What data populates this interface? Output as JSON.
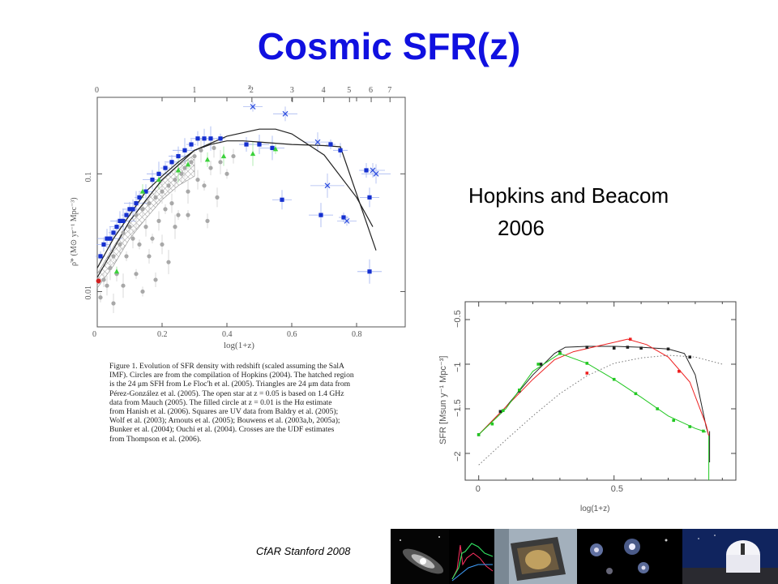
{
  "slide": {
    "title": "Cosmic SFR(z)",
    "credit_line1": "Hopkins and Beacom",
    "credit_line2": "2006",
    "footer": "CfAR Stanford 2008"
  },
  "caption_lines": [
    "Figure 1.     Evolution of SFR density with redshift (scaled assuming the SalA",
    "IMF). Circles are from the compilation of Hopkins (2004). The hatched region",
    "is the 24 μm SFH from Le Floc'h et al. (2005). Triangles are 24 μm data from",
    "Pérez-González et al. (2005). The open star at z = 0.05 is based on 1.4 GHz",
    "data from Mauch (2005). The filled circle at z = 0.01 is the Hα estimate",
    "from Hanish et al. (2006). Squares are UV data from Baldry et al. (2005);",
    "Wolf et al. (2003); Arnouts et al. (2005); Bouwens et al. (2003a,b, 2005a);",
    "Bunker et al. (2004); Ouchi et al. (2004). Crosses are the UDF estimates",
    "from Thompson et al. (2006)."
  ],
  "chart_data": [
    {
      "type": "scatter",
      "xlabel": "log(1+z)",
      "ylabel": "ρ̇* (M⊙ yr⁻¹ Mpc⁻³)",
      "top_axis_label": "z",
      "x_ticks": [
        "0",
        "0.2",
        "0.4",
        "0.6",
        "0.8"
      ],
      "top_ticks": [
        "0",
        "1",
        "2",
        "3",
        "4",
        "5",
        "6",
        "7"
      ],
      "y_ticks": [
        "0.01",
        "0.1"
      ],
      "xlim": [
        0,
        0.95
      ],
      "ylim_log10": [
        -2.3,
        -0.35
      ],
      "colors": {
        "circles": "#a8a8a8",
        "squares": "#1530d0",
        "triangles": "#3cd23c",
        "crosses": "#3050e0",
        "filled_circle": "#d02020"
      },
      "series": [
        {
          "name": "Circles",
          "points": [
            [
              0.01,
              -2.05
            ],
            [
              0.02,
              -1.9
            ],
            [
              0.03,
              -1.95
            ],
            [
              0.04,
              -1.8
            ],
            [
              0.05,
              -1.7
            ],
            [
              0.06,
              -1.85
            ],
            [
              0.07,
              -1.6
            ],
            [
              0.08,
              -1.5
            ],
            [
              0.09,
              -1.7
            ],
            [
              0.1,
              -1.45
            ],
            [
              0.11,
              -1.55
            ],
            [
              0.12,
              -1.35
            ],
            [
              0.13,
              -1.6
            ],
            [
              0.14,
              -1.3
            ],
            [
              0.15,
              -1.45
            ],
            [
              0.16,
              -1.25
            ],
            [
              0.17,
              -1.55
            ],
            [
              0.18,
              -1.2
            ],
            [
              0.19,
              -1.4
            ],
            [
              0.2,
              -1.15
            ],
            [
              0.21,
              -1.3
            ],
            [
              0.22,
              -1.1
            ],
            [
              0.23,
              -1.25
            ],
            [
              0.24,
              -1.05
            ],
            [
              0.25,
              -1.35
            ],
            [
              0.26,
              -1.0
            ],
            [
              0.27,
              -0.95
            ],
            [
              0.28,
              -1.15
            ],
            [
              0.29,
              -0.9
            ],
            [
              0.3,
              -0.85
            ],
            [
              0.31,
              -1.05
            ],
            [
              0.32,
              -0.8
            ],
            [
              0.33,
              -1.1
            ],
            [
              0.35,
              -0.95
            ],
            [
              0.37,
              -1.2
            ],
            [
              0.38,
              -0.9
            ],
            [
              0.4,
              -1.0
            ],
            [
              0.42,
              -0.85
            ],
            [
              0.05,
              -2.1
            ],
            [
              0.08,
              -1.95
            ],
            [
              0.12,
              -1.85
            ],
            [
              0.16,
              -1.7
            ],
            [
              0.2,
              -1.6
            ],
            [
              0.24,
              -1.45
            ],
            [
              0.28,
              -1.35
            ],
            [
              0.34,
              -1.4
            ],
            [
              0.36,
              -0.78
            ],
            [
              0.22,
              -1.75
            ],
            [
              0.14,
              -2.0
            ],
            [
              0.18,
              -1.9
            ]
          ]
        },
        {
          "name": "Squares",
          "points": [
            [
              0.01,
              -1.7
            ],
            [
              0.02,
              -1.6
            ],
            [
              0.03,
              -1.55
            ],
            [
              0.04,
              -1.55
            ],
            [
              0.05,
              -1.5
            ],
            [
              0.06,
              -1.45
            ],
            [
              0.07,
              -1.4
            ],
            [
              0.08,
              -1.4
            ],
            [
              0.09,
              -1.35
            ],
            [
              0.1,
              -1.3
            ],
            [
              0.11,
              -1.3
            ],
            [
              0.12,
              -1.25
            ],
            [
              0.13,
              -1.2
            ],
            [
              0.15,
              -1.15
            ],
            [
              0.17,
              -1.05
            ],
            [
              0.19,
              -1.0
            ],
            [
              0.21,
              -0.95
            ],
            [
              0.23,
              -0.9
            ],
            [
              0.25,
              -0.85
            ],
            [
              0.27,
              -0.8
            ],
            [
              0.29,
              -0.75
            ],
            [
              0.31,
              -0.7
            ],
            [
              0.33,
              -0.7
            ],
            [
              0.35,
              -0.7
            ],
            [
              0.38,
              -0.7
            ],
            [
              0.46,
              -0.75
            ],
            [
              0.5,
              -0.75
            ],
            [
              0.54,
              -0.78
            ],
            [
              0.72,
              -0.75
            ],
            [
              0.75,
              -0.8
            ],
            [
              0.57,
              -1.22
            ],
            [
              0.69,
              -1.35
            ],
            [
              0.76,
              -1.37
            ],
            [
              0.83,
              -0.97
            ],
            [
              0.84,
              -1.2
            ],
            [
              0.84,
              -1.83
            ]
          ]
        },
        {
          "name": "Triangles",
          "points": [
            [
              0.06,
              -1.83
            ],
            [
              0.14,
              -1.15
            ],
            [
              0.19,
              -1.05
            ],
            [
              0.25,
              -0.97
            ],
            [
              0.28,
              -0.92
            ],
            [
              0.34,
              -0.88
            ],
            [
              0.39,
              -0.85
            ],
            [
              0.48,
              -0.83
            ],
            [
              0.55,
              -0.79
            ]
          ]
        },
        {
          "name": "Crosses",
          "points": [
            [
              0.48,
              -0.43
            ],
            [
              0.58,
              -0.49
            ],
            [
              0.68,
              -0.73
            ],
            [
              0.71,
              -1.1
            ],
            [
              0.77,
              -1.4
            ],
            [
              0.85,
              -0.97
            ],
            [
              0.86,
              -1.0
            ]
          ]
        },
        {
          "name": "Filled circle",
          "points": [
            [
              0.004,
              -1.91
            ]
          ]
        }
      ],
      "lines": [
        {
          "name": "model fit",
          "points": [
            [
              0,
              -1.88
            ],
            [
              0.1,
              -1.4
            ],
            [
              0.2,
              -1.05
            ],
            [
              0.3,
              -0.8
            ],
            [
              0.4,
              -0.68
            ],
            [
              0.5,
              -0.62
            ],
            [
              0.55,
              -0.62
            ],
            [
              0.6,
              -0.66
            ],
            [
              0.7,
              -0.84
            ],
            [
              0.8,
              -1.2
            ],
            [
              0.85,
              -1.45
            ]
          ]
        },
        {
          "name": "piecewise fit",
          "points": [
            [
              0,
              -1.8
            ],
            [
              0.05,
              -1.55
            ],
            [
              0.1,
              -1.35
            ],
            [
              0.15,
              -1.15
            ],
            [
              0.2,
              -1.02
            ],
            [
              0.25,
              -0.9
            ],
            [
              0.3,
              -0.8
            ],
            [
              0.35,
              -0.75
            ],
            [
              0.4,
              -0.72
            ],
            [
              0.45,
              -0.72
            ],
            [
              0.5,
              -0.73
            ],
            [
              0.6,
              -0.75
            ],
            [
              0.7,
              -0.76
            ],
            [
              0.75,
              -0.77
            ],
            [
              0.86,
              -1.65
            ]
          ]
        }
      ]
    },
    {
      "type": "line",
      "xlabel": "log(1+z)",
      "ylabel": "SFR [Msun y⁻¹ Mpc⁻³]",
      "x_ticks": [
        "0",
        "0.5"
      ],
      "y_ticks": [
        "−0.5",
        "−1",
        "−1.5",
        "−2"
      ],
      "xlim": [
        -0.05,
        0.95
      ],
      "ylim": [
        -2.3,
        -0.3
      ],
      "series": [
        {
          "name": "black",
          "color": "#222222",
          "marker_points": [
            [
              0,
              -1.79
            ],
            [
              0.08,
              -1.53
            ],
            [
              0.15,
              -1.3
            ],
            [
              0.23,
              -1.0
            ],
            [
              0.3,
              -0.87
            ],
            [
              0.4,
              -0.81
            ],
            [
              0.5,
              -0.82
            ],
            [
              0.55,
              -0.81
            ],
            [
              0.6,
              -0.82
            ],
            [
              0.7,
              -0.83
            ],
            [
              0.78,
              -0.92
            ]
          ],
          "curve": [
            [
              0,
              -1.79
            ],
            [
              0.1,
              -1.48
            ],
            [
              0.2,
              -1.12
            ],
            [
              0.28,
              -0.88
            ],
            [
              0.32,
              -0.81
            ],
            [
              0.4,
              -0.8
            ],
            [
              0.5,
              -0.8
            ],
            [
              0.6,
              -0.81
            ],
            [
              0.7,
              -0.83
            ],
            [
              0.76,
              -0.88
            ],
            [
              0.8,
              -1.12
            ],
            [
              0.84,
              -1.7
            ],
            [
              0.85,
              -1.8
            ]
          ]
        },
        {
          "name": "red",
          "color": "#ee2020",
          "marker_points": [
            [
              0.4,
              -1.1
            ],
            [
              0.56,
              -0.72
            ],
            [
              0.74,
              -1.08
            ]
          ],
          "curve": [
            [
              0,
              -1.79
            ],
            [
              0.1,
              -1.48
            ],
            [
              0.2,
              -1.17
            ],
            [
              0.28,
              -0.95
            ],
            [
              0.35,
              -0.86
            ],
            [
              0.45,
              -0.79
            ],
            [
              0.55,
              -0.72
            ],
            [
              0.62,
              -0.78
            ],
            [
              0.7,
              -0.92
            ],
            [
              0.78,
              -1.2
            ],
            [
              0.84,
              -1.68
            ],
            [
              0.85,
              -1.8
            ]
          ]
        },
        {
          "name": "green",
          "color": "#22c822",
          "marker_points": [
            [
              0,
              -1.79
            ],
            [
              0.05,
              -1.67
            ],
            [
              0.09,
              -1.52
            ],
            [
              0.15,
              -1.29
            ],
            [
              0.22,
              -1.0
            ],
            [
              0.3,
              -0.88
            ],
            [
              0.4,
              -0.99
            ],
            [
              0.5,
              -1.17
            ],
            [
              0.58,
              -1.33
            ],
            [
              0.66,
              -1.5
            ],
            [
              0.72,
              -1.63
            ],
            [
              0.78,
              -1.7
            ],
            [
              0.83,
              -1.75
            ]
          ],
          "curve": [
            [
              0,
              -1.79
            ],
            [
              0.1,
              -1.5
            ],
            [
              0.2,
              -1.08
            ],
            [
              0.3,
              -0.88
            ],
            [
              0.4,
              -0.99
            ],
            [
              0.5,
              -1.17
            ],
            [
              0.6,
              -1.37
            ],
            [
              0.7,
              -1.58
            ],
            [
              0.8,
              -1.72
            ],
            [
              0.84,
              -1.76
            ]
          ]
        },
        {
          "name": "dotted",
          "color": "#777777",
          "dashed": true,
          "curve": [
            [
              0,
              -2.13
            ],
            [
              0.1,
              -1.85
            ],
            [
              0.2,
              -1.58
            ],
            [
              0.3,
              -1.33
            ],
            [
              0.4,
              -1.13
            ],
            [
              0.5,
              -0.99
            ],
            [
              0.6,
              -0.93
            ],
            [
              0.7,
              -0.9
            ],
            [
              0.8,
              -0.92
            ],
            [
              0.9,
              -1.0
            ]
          ]
        }
      ]
    }
  ]
}
